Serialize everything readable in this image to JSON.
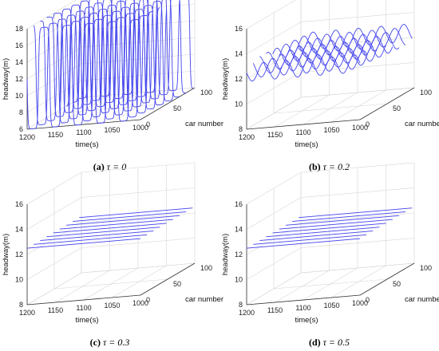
{
  "chart_data": [
    {
      "type": "line",
      "panel_label": "(a)",
      "tau_text": "τ = 0",
      "xlabel": "time(s)",
      "ylabel": "car number",
      "zlabel": "headway(m)",
      "xlim": [
        1000,
        1200
      ],
      "ylim": [
        0,
        100
      ],
      "zlim": [
        6,
        18
      ],
      "xticks": [
        1000,
        1050,
        1100,
        1150,
        1200
      ],
      "yticks": [
        0,
        50,
        100
      ],
      "zticks": [
        6,
        8,
        10,
        12,
        14,
        16,
        18
      ],
      "grid": true,
      "series_color": "#4444ee",
      "cars": [
        0,
        12,
        24,
        36,
        48,
        60,
        72,
        84,
        96
      ],
      "wave": {
        "mean": 12,
        "amplitude": 6,
        "period_s": 40,
        "shape": "square",
        "phase_per_car": 0.11
      }
    },
    {
      "type": "line",
      "panel_label": "(b)",
      "tau_text": "τ = 0.2",
      "xlabel": "time(s)",
      "ylabel": "car number",
      "zlabel": "headway(m)",
      "xlim": [
        1000,
        1200
      ],
      "ylim": [
        0,
        100
      ],
      "zlim": [
        8,
        16
      ],
      "xticks": [
        1000,
        1050,
        1100,
        1150,
        1200
      ],
      "yticks": [
        0,
        50,
        100
      ],
      "zticks": [
        8,
        10,
        12,
        14,
        16
      ],
      "grid": true,
      "series_color": "#4444ee",
      "cars": [
        0,
        12,
        24,
        36,
        48,
        60,
        72,
        84,
        96
      ],
      "wave": {
        "mean": 12.5,
        "amplitude": 0.7,
        "period_s": 40,
        "shape": "sine",
        "phase_per_car": 0.11
      }
    },
    {
      "type": "line",
      "panel_label": "(c)",
      "tau_text": "τ = 0.3",
      "xlabel": "time(s)",
      "ylabel": "car number",
      "zlabel": "headway(m)",
      "xlim": [
        1000,
        1200
      ],
      "ylim": [
        0,
        100
      ],
      "zlim": [
        8,
        16
      ],
      "xticks": [
        1000,
        1050,
        1100,
        1150,
        1200
      ],
      "yticks": [
        0,
        50,
        100
      ],
      "zticks": [
        8,
        10,
        12,
        14,
        16
      ],
      "grid": true,
      "series_color": "#4444ee",
      "cars": [
        0,
        12,
        24,
        36,
        48,
        60,
        72,
        84,
        96
      ],
      "wave": {
        "mean": 12.5,
        "amplitude": 0,
        "period_s": 40,
        "shape": "flat",
        "phase_per_car": 0
      }
    },
    {
      "type": "line",
      "panel_label": "(d)",
      "tau_text": "τ = 0.5",
      "xlabel": "time(s)",
      "ylabel": "car number",
      "zlabel": "headway(m)",
      "xlim": [
        1000,
        1200
      ],
      "ylim": [
        0,
        100
      ],
      "zlim": [
        8,
        16
      ],
      "xticks": [
        1000,
        1050,
        1100,
        1150,
        1200
      ],
      "yticks": [
        0,
        50,
        100
      ],
      "zticks": [
        8,
        10,
        12,
        14,
        16
      ],
      "grid": true,
      "series_color": "#4444ee",
      "cars": [
        0,
        12,
        24,
        36,
        48,
        60,
        72,
        84,
        96
      ],
      "wave": {
        "mean": 12.5,
        "amplitude": 0,
        "period_s": 40,
        "shape": "flat",
        "phase_per_car": 0
      }
    }
  ]
}
